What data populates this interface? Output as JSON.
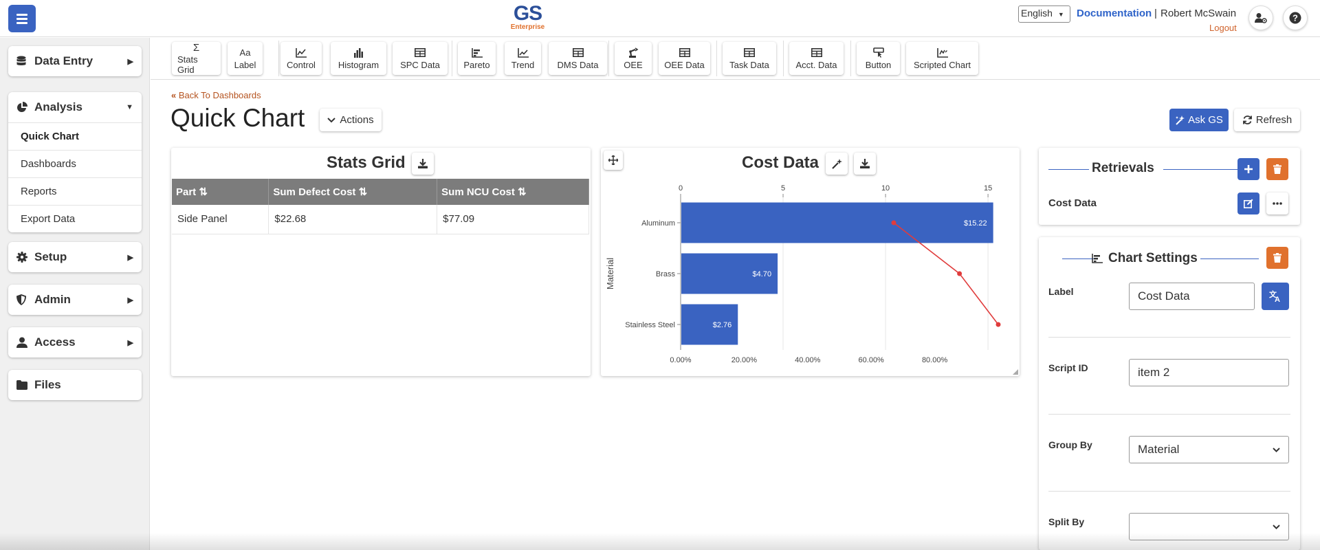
{
  "header": {
    "logo_main": "GS",
    "logo_sub": "Enterprise",
    "language": "English",
    "documentation": "Documentation",
    "separator": "|",
    "user_name": "Robert McSwain",
    "logout": "Logout"
  },
  "sidebar": {
    "data_entry": "Data Entry",
    "analysis": "Analysis",
    "analysis_items": [
      "Quick Chart",
      "Dashboards",
      "Reports",
      "Export Data"
    ],
    "setup": "Setup",
    "admin": "Admin",
    "access": "Access",
    "files": "Files"
  },
  "toolbar": {
    "items": [
      "Stats Grid",
      "Label",
      "Control",
      "Histogram",
      "SPC Data",
      "Pareto",
      "Trend",
      "DMS Data",
      "OEE",
      "OEE Data",
      "Task Data",
      "Acct. Data",
      "Button",
      "Scripted Chart"
    ],
    "stats_grid_icon_text": "Σ",
    "label_icon_text": "Aa"
  },
  "page": {
    "back_link": "Back To Dashboards",
    "title": "Quick Chart",
    "actions": "Actions",
    "ask_gs": "Ask GS",
    "refresh": "Refresh"
  },
  "stats_grid": {
    "title": "Stats Grid",
    "columns": [
      "Part",
      "Sum Defect Cost",
      "Sum NCU Cost"
    ],
    "rows": [
      [
        "Side Panel",
        "$22.68",
        "$77.09"
      ]
    ]
  },
  "chart_data": {
    "type": "bar",
    "orientation": "horizontal",
    "title": "Cost Data",
    "ylabel": "Material",
    "categories": [
      "Aluminum",
      "Brass",
      "Stainless Steel"
    ],
    "values": [
      15.22,
      4.7,
      2.76
    ],
    "value_labels": [
      "$15.22",
      "$4.70",
      "$2.76"
    ],
    "top_axis_ticks": [
      "0",
      "5",
      "10",
      "15"
    ],
    "top_axis_range": [
      0,
      15.5
    ],
    "bottom_axis_ticks": [
      "0.00%",
      "20.00%",
      "40.00%",
      "60.00%",
      "80.00%"
    ],
    "bottom_axis_range": [
      0,
      100
    ],
    "cumulative_percent": [
      67.1,
      87.8,
      100
    ],
    "bar_color": "#3a63c1",
    "line_color": "#e03c3c",
    "grid": true
  },
  "right_panel": {
    "retrievals_title": "Retrievals",
    "retrieval_item": "Cost Data",
    "chart_settings_title": "Chart Settings",
    "label_label": "Label",
    "label_value": "Cost Data",
    "script_id_label": "Script ID",
    "script_id_value": "item 2",
    "group_by_label": "Group By",
    "group_by_value": "Material",
    "split_by_label": "Split By",
    "split_by_value": ""
  },
  "colors": {
    "primary": "#3a63c1",
    "danger": "#e0712d",
    "link_orange": "#b5531f"
  }
}
